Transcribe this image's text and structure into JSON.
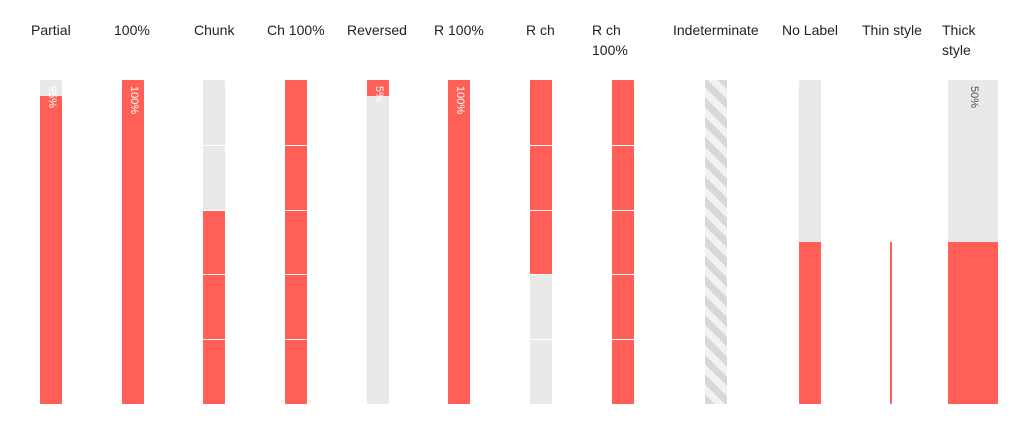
{
  "bars": [
    {
      "label": "Partial",
      "value": 0.95,
      "value_text": "95%",
      "mode": "partial"
    },
    {
      "label": "100%",
      "value": 1.0,
      "value_text": "100%",
      "mode": "full"
    },
    {
      "label": "Chunk",
      "value": 0.6,
      "value_text": "",
      "mode": "chunk"
    },
    {
      "label": "Ch 100%",
      "value": 1.0,
      "value_text": "",
      "mode": "chunk"
    },
    {
      "label": "Reversed",
      "value": 0.05,
      "value_text": "5%",
      "mode": "reversed"
    },
    {
      "label": "R 100%",
      "value": 1.0,
      "value_text": "100%",
      "mode": "reversed"
    },
    {
      "label": "R ch",
      "value": 0.6,
      "value_text": "",
      "mode": "reversed-chunk"
    },
    {
      "label": "R ch\n100%",
      "value": 1.0,
      "value_text": "",
      "mode": "reversed-chunk"
    },
    {
      "label": "Indeterminate",
      "value": null,
      "value_text": "",
      "mode": "indeterminate"
    },
    {
      "label": "No Label",
      "value": 0.5,
      "value_text": "",
      "mode": "nolabel"
    },
    {
      "label": "Thin style",
      "value": 0.5,
      "value_text": "",
      "mode": "thin"
    },
    {
      "label": "Thick\nstyle",
      "value": 0.5,
      "value_text": "50%",
      "mode": "thick"
    }
  ],
  "colors": {
    "fill": "#ff5f56",
    "track": "#e9e9e9",
    "stripe": "#d8d8d8"
  }
}
